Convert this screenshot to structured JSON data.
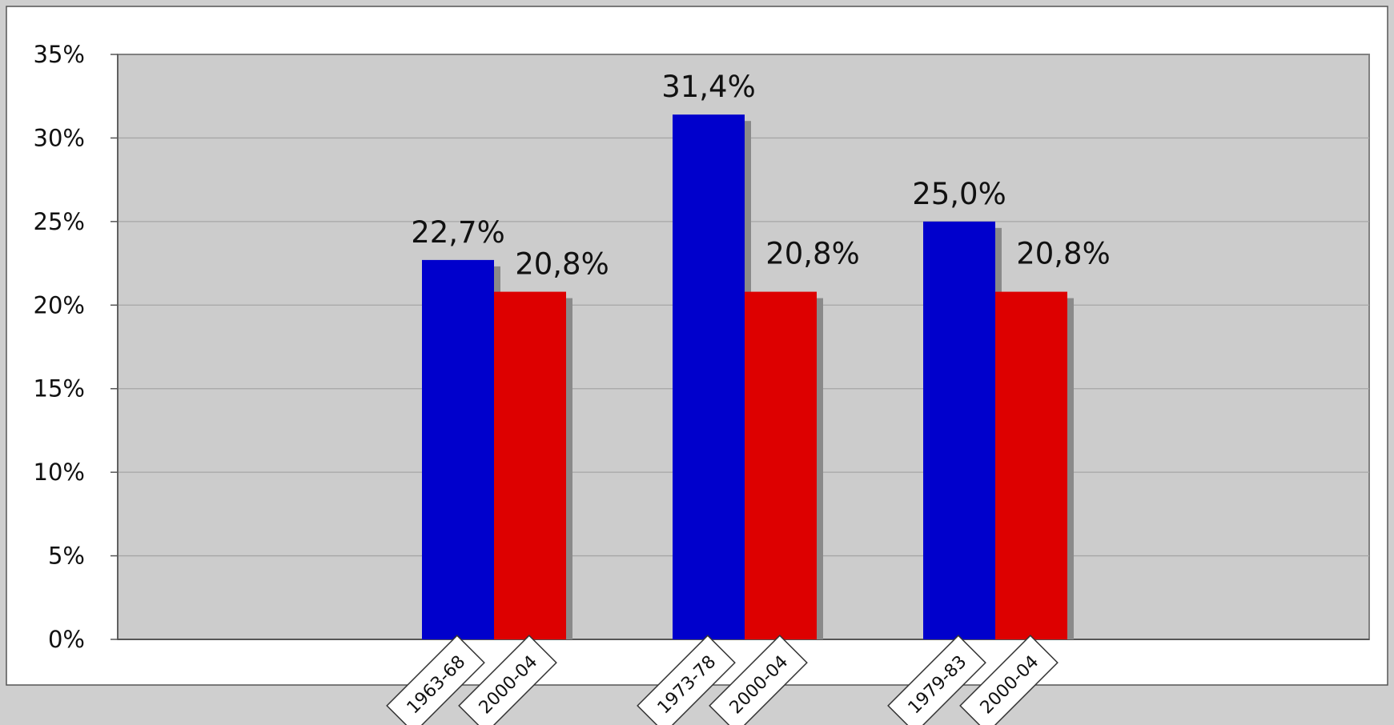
{
  "chart_data": {
    "type": "bar",
    "title": "",
    "xlabel": "",
    "ylabel": "",
    "ylim": [
      0,
      35
    ],
    "yticks": [
      0,
      5,
      10,
      15,
      20,
      25,
      30,
      35
    ],
    "ytick_labels": [
      "0%",
      "5%",
      "10%",
      "15%",
      "20%",
      "25%",
      "30%",
      "35%"
    ],
    "grid": true,
    "legend": "none",
    "groups": [
      {
        "bars": [
          {
            "category": "1963-68",
            "value": 22.7,
            "label": "22,7%",
            "color": "#0000cc"
          },
          {
            "category": "2000-04",
            "value": 20.8,
            "label": "20,8%",
            "color": "#dd0000"
          }
        ]
      },
      {
        "bars": [
          {
            "category": "1973-78",
            "value": 31.4,
            "label": "31,4%",
            "color": "#0000cc"
          },
          {
            "category": "2000-04",
            "value": 20.8,
            "label": "20,8%",
            "color": "#dd0000"
          }
        ]
      },
      {
        "bars": [
          {
            "category": "1979-83",
            "value": 25.0,
            "label": "25,0%",
            "color": "#0000cc"
          },
          {
            "category": "2000-04",
            "value": 20.8,
            "label": "20,8%",
            "color": "#dd0000"
          }
        ]
      }
    ],
    "colors": {
      "plot_background": "#cccccc",
      "chart_background": "#ffffff",
      "page_background": "#cfcfcf",
      "gridline": "#a6a6a6",
      "bar_shadow": "#8a8a8a"
    }
  }
}
